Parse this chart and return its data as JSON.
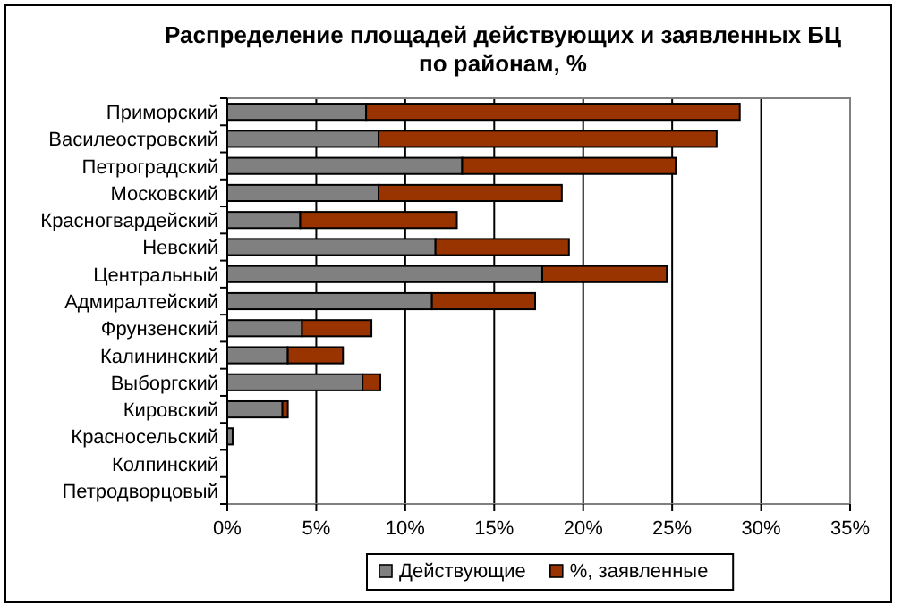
{
  "chart_data": {
    "type": "bar",
    "orientation": "horizontal",
    "stacked": true,
    "title": "Распределение площадей действующих и заявленных БЦ\nпо районам, %",
    "categories": [
      "Приморский",
      "Василеостровский",
      "Петроградский",
      "Московский",
      "Красногвардейский",
      "Невский",
      "Центральный",
      "Адмиралтейский",
      "Фрунзенский",
      "Калининский",
      "Выборгский",
      "Кировский",
      "Красносельский",
      "Колпинский",
      "Петродворцовый"
    ],
    "series": [
      {
        "name": "Действующие",
        "color": "#808080",
        "values": [
          7.8,
          8.5,
          13.2,
          8.5,
          4.1,
          11.7,
          17.7,
          11.5,
          4.2,
          3.4,
          7.6,
          3.1,
          0.3,
          0,
          0
        ]
      },
      {
        "name": "%, заявленные",
        "color": "#993300",
        "values": [
          21.0,
          19.0,
          12.0,
          10.3,
          8.8,
          7.5,
          7.0,
          5.8,
          3.9,
          3.1,
          1.0,
          0.3,
          0,
          0,
          0
        ]
      }
    ],
    "xlim": [
      0,
      35
    ],
    "xticks": [
      {
        "value": 0,
        "label": "0%"
      },
      {
        "value": 5,
        "label": "5%"
      },
      {
        "value": 10,
        "label": "10%"
      },
      {
        "value": 15,
        "label": "15%"
      },
      {
        "value": 20,
        "label": "20%"
      },
      {
        "value": 25,
        "label": "25%"
      },
      {
        "value": 30,
        "label": "30%"
      },
      {
        "value": 35,
        "label": "35%"
      }
    ],
    "grid": "x",
    "legend": "bottom"
  }
}
